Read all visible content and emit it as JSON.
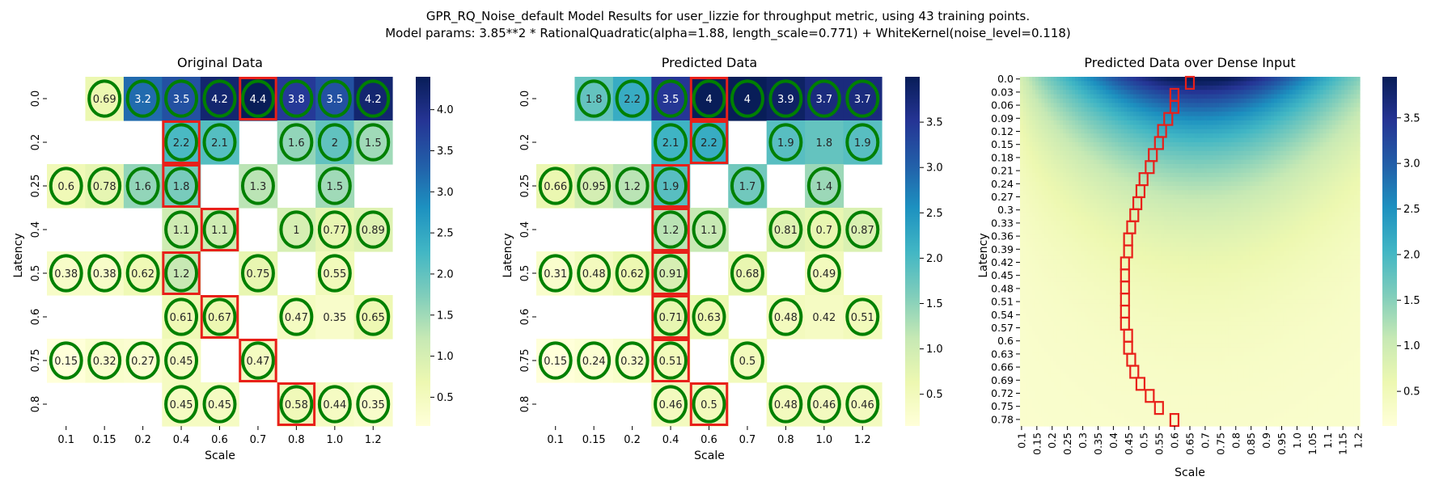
{
  "figure": {
    "title_line1": "GPR_RQ_Noise_default Model Results for user_lizzie for throughput metric, using 43 training points.",
    "title_line2": "Model params: 3.85**2 * RationalQuadratic(alpha=1.88, length_scale=0.771) + WhiteKernel(noise_level=0.118)"
  },
  "colors": {
    "cmap": [
      "#ffffd9",
      "#edf8b1",
      "#c7e9b4",
      "#7fcdbb",
      "#41b6c4",
      "#1d91c0",
      "#225ea8",
      "#253494",
      "#081d58"
    ],
    "circle": "#008000",
    "box": "#e8201a"
  },
  "chart_data": [
    {
      "type": "heatmap",
      "title": "Original Data",
      "xlabel": "Scale",
      "ylabel": "Latency",
      "x": [
        "0.1",
        "0.15",
        "0.2",
        "0.4",
        "0.6",
        "0.7",
        "0.8",
        "1.0",
        "1.2"
      ],
      "y": [
        "0.0",
        "0.2",
        "0.25",
        "0.4",
        "0.5",
        "0.6",
        "0.75",
        "0.8"
      ],
      "values": [
        [
          null,
          0.69,
          3.2,
          3.5,
          4.2,
          4.4,
          3.8,
          3.5,
          4.2
        ],
        [
          null,
          null,
          null,
          2.2,
          2.1,
          null,
          1.6,
          2,
          1.5
        ],
        [
          0.6,
          0.78,
          1.6,
          1.8,
          null,
          1.3,
          null,
          1.5,
          null
        ],
        [
          null,
          null,
          null,
          1.1,
          1.1,
          null,
          1,
          0.77,
          0.89
        ],
        [
          0.38,
          0.38,
          0.62,
          1.2,
          null,
          0.75,
          null,
          0.55,
          null
        ],
        [
          null,
          null,
          null,
          0.61,
          0.67,
          null,
          0.47,
          0.35,
          0.65
        ],
        [
          0.15,
          0.32,
          0.27,
          0.45,
          null,
          0.47,
          null,
          null,
          null
        ],
        [
          null,
          null,
          null,
          0.45,
          0.45,
          null,
          0.58,
          0.44,
          0.35
        ]
      ],
      "circled": [
        [
          false,
          true,
          true,
          true,
          true,
          true,
          true,
          true,
          true
        ],
        [
          false,
          false,
          false,
          true,
          true,
          false,
          true,
          true,
          true
        ],
        [
          true,
          true,
          true,
          true,
          false,
          true,
          false,
          true,
          false
        ],
        [
          false,
          false,
          false,
          true,
          true,
          false,
          true,
          true,
          true
        ],
        [
          true,
          true,
          true,
          true,
          false,
          true,
          false,
          true,
          false
        ],
        [
          false,
          false,
          false,
          true,
          true,
          false,
          true,
          false,
          true
        ],
        [
          true,
          true,
          true,
          true,
          false,
          true,
          false,
          false,
          false
        ],
        [
          false,
          false,
          false,
          true,
          true,
          false,
          true,
          true,
          true
        ]
      ],
      "boxed": [
        [
          0,
          5
        ],
        [
          1,
          3
        ],
        [
          2,
          3
        ],
        [
          3,
          4
        ],
        [
          4,
          3
        ],
        [
          5,
          4
        ],
        [
          6,
          5
        ],
        [
          7,
          6
        ]
      ],
      "vmin": 0.15,
      "vmax": 4.4,
      "colorbar_ticks": [
        "0.5",
        "1.0",
        "1.5",
        "2.0",
        "2.5",
        "3.0",
        "3.5",
        "4.0"
      ]
    },
    {
      "type": "heatmap",
      "title": "Predicted Data",
      "xlabel": "Scale",
      "ylabel": "Latency",
      "x": [
        "0.1",
        "0.15",
        "0.2",
        "0.4",
        "0.6",
        "0.7",
        "0.8",
        "1.0",
        "1.2"
      ],
      "y": [
        "0.0",
        "0.2",
        "0.25",
        "0.4",
        "0.5",
        "0.6",
        "0.75",
        "0.8"
      ],
      "values": [
        [
          null,
          1.8,
          2.2,
          3.5,
          4,
          4,
          3.9,
          3.7,
          3.7
        ],
        [
          null,
          null,
          null,
          2.1,
          2.2,
          null,
          1.9,
          1.8,
          1.9
        ],
        [
          0.66,
          0.95,
          1.2,
          1.9,
          null,
          1.7,
          null,
          1.4,
          null
        ],
        [
          null,
          null,
          null,
          1.2,
          1.1,
          null,
          0.81,
          0.7,
          0.87
        ],
        [
          0.31,
          0.48,
          0.62,
          0.91,
          null,
          0.68,
          null,
          0.49,
          null
        ],
        [
          null,
          null,
          null,
          0.71,
          0.63,
          null,
          0.48,
          0.42,
          0.51
        ],
        [
          0.15,
          0.24,
          0.32,
          0.51,
          null,
          0.5,
          null,
          null,
          null
        ],
        [
          null,
          null,
          null,
          0.46,
          0.5,
          null,
          0.48,
          0.46,
          0.46
        ]
      ],
      "circled": [
        [
          false,
          true,
          true,
          true,
          true,
          true,
          true,
          true,
          true
        ],
        [
          false,
          false,
          false,
          true,
          true,
          false,
          true,
          false,
          true
        ],
        [
          true,
          true,
          true,
          true,
          false,
          true,
          false,
          true,
          false
        ],
        [
          false,
          false,
          false,
          true,
          true,
          false,
          true,
          true,
          true
        ],
        [
          true,
          true,
          true,
          true,
          false,
          true,
          false,
          true,
          false
        ],
        [
          false,
          false,
          false,
          true,
          true,
          false,
          true,
          false,
          true
        ],
        [
          true,
          true,
          true,
          true,
          false,
          true,
          false,
          false,
          false
        ],
        [
          false,
          false,
          false,
          true,
          true,
          false,
          true,
          true,
          true
        ]
      ],
      "boxed": [
        [
          0,
          4
        ],
        [
          1,
          4
        ],
        [
          2,
          3
        ],
        [
          3,
          3
        ],
        [
          4,
          3
        ],
        [
          5,
          3
        ],
        [
          6,
          3
        ],
        [
          7,
          4
        ]
      ],
      "vmin": 0.15,
      "vmax": 4.0,
      "colorbar_ticks": [
        "0.5",
        "1.0",
        "1.5",
        "2.0",
        "2.5",
        "3.0",
        "3.5"
      ]
    },
    {
      "type": "heatmap",
      "title": "Predicted Data over Dense Input",
      "xlabel": "Scale",
      "ylabel": "Latency",
      "x": [
        "0.1",
        "0.15",
        "0.2",
        "0.25",
        "0.3",
        "0.35",
        "0.4",
        "0.45",
        "0.5",
        "0.55",
        "0.6",
        "0.65",
        "0.7",
        "0.75",
        "0.8",
        "0.85",
        "0.9",
        "0.95",
        "1.0",
        "1.05",
        "1.1",
        "1.15",
        "1.2"
      ],
      "y": [
        "0.0",
        "0.03",
        "0.06",
        "0.09",
        "0.12",
        "0.15",
        "0.18",
        "0.21",
        "0.24",
        "0.27",
        "0.3",
        "0.33",
        "0.36",
        "0.39",
        "0.42",
        "0.45",
        "0.48",
        "0.51",
        "0.54",
        "0.57",
        "0.6",
        "0.63",
        "0.66",
        "0.69",
        "0.72",
        "0.75",
        "0.78"
      ],
      "max_path_scale": [
        0.65,
        0.6,
        0.6,
        0.58,
        0.56,
        0.55,
        0.53,
        0.52,
        0.5,
        0.49,
        0.48,
        0.47,
        0.46,
        0.45,
        0.45,
        0.44,
        0.44,
        0.44,
        0.44,
        0.44,
        0.44,
        0.45,
        0.45,
        0.46,
        0.47,
        0.49,
        0.52,
        0.55,
        0.6
      ],
      "surface": {
        "amplitude": 3.8,
        "latency_decay": 5.5,
        "peak_scale": 0.68,
        "scale_width": 0.5,
        "edge_falloff": 0.32,
        "floor": 0.25,
        "step": 0.01
      },
      "vmin": 0.12,
      "vmax": 3.95,
      "colorbar_ticks": [
        "0.5",
        "1.0",
        "1.5",
        "2.0",
        "2.5",
        "3.0",
        "3.5"
      ]
    }
  ]
}
